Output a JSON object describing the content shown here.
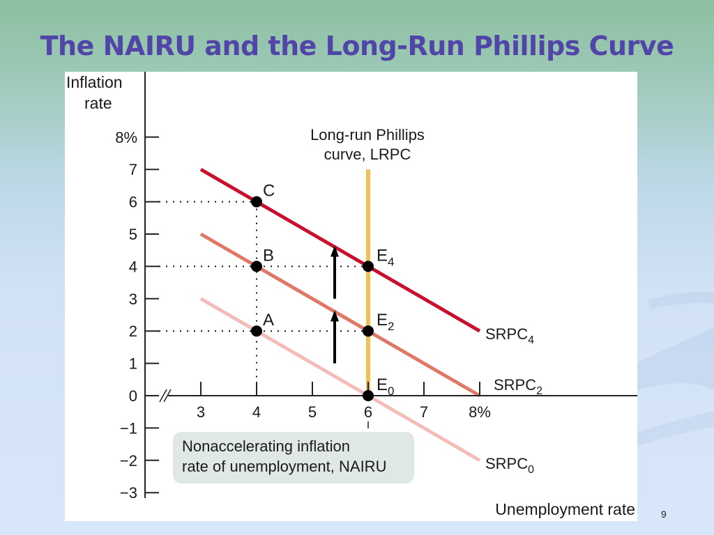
{
  "slide": {
    "title": "The NAIRU and the Long-Run Phillips Curve",
    "page_number": "9"
  },
  "colors": {
    "srpc4": "#c8102e",
    "srpc2": "#e07868",
    "srpc0": "#f4bcb8",
    "lrpc": "#f0c050",
    "title": "#5146a8",
    "nairu_box": "#dfe8e4"
  },
  "chart_data": {
    "type": "line",
    "title": "",
    "xlabel": "Unemployment rate",
    "ylabel_line1": "Inflation",
    "ylabel_line2": "rate",
    "xlim": [
      2.6,
      8.0
    ],
    "ylim": [
      -3,
      8
    ],
    "x_ticks": [
      3,
      4,
      5,
      6,
      7,
      8
    ],
    "x_tick_labels": [
      "3",
      "4",
      "5",
      "6",
      "7",
      "8%"
    ],
    "y_ticks": [
      8,
      7,
      6,
      5,
      4,
      3,
      2,
      1,
      0,
      -1,
      -2,
      -3
    ],
    "y_tick_labels": [
      "8%",
      "7",
      "6",
      "5",
      "4",
      "3",
      "2",
      "1",
      "0",
      "−1",
      "−2",
      "−3"
    ],
    "grid": false,
    "series": [
      {
        "name": "SRPC",
        "subscript": "4",
        "color_key": "srpc4",
        "x": [
          3,
          8
        ],
        "y": [
          7,
          2
        ]
      },
      {
        "name": "SRPC",
        "subscript": "2",
        "color_key": "srpc2",
        "x": [
          3,
          8
        ],
        "y": [
          5,
          0
        ]
      },
      {
        "name": "SRPC",
        "subscript": "0",
        "color_key": "srpc0",
        "x": [
          3,
          8
        ],
        "y": [
          3,
          -2
        ]
      }
    ],
    "lrpc": {
      "x": 6,
      "y_range": [
        0,
        7
      ],
      "label_line1": "Long-run Phillips",
      "label_line2": "curve, LRPC"
    },
    "points": [
      {
        "label": "C",
        "x": 4,
        "y": 6
      },
      {
        "label": "B",
        "x": 4,
        "y": 4
      },
      {
        "label": "A",
        "x": 4,
        "y": 2
      },
      {
        "label": "E",
        "subscript": "4",
        "x": 6,
        "y": 4
      },
      {
        "label": "E",
        "subscript": "2",
        "x": 6,
        "y": 2
      },
      {
        "label": "E",
        "subscript": "0",
        "x": 6,
        "y": 0
      }
    ],
    "arrows": [
      {
        "x": 5.4,
        "y_from": 1.0,
        "y_to": 2.6
      },
      {
        "x": 5.4,
        "y_from": 3.0,
        "y_to": 4.6
      }
    ],
    "annotation": {
      "line1": "Nonaccelerating inflation",
      "line2": "rate of unemployment, NAIRU"
    }
  }
}
